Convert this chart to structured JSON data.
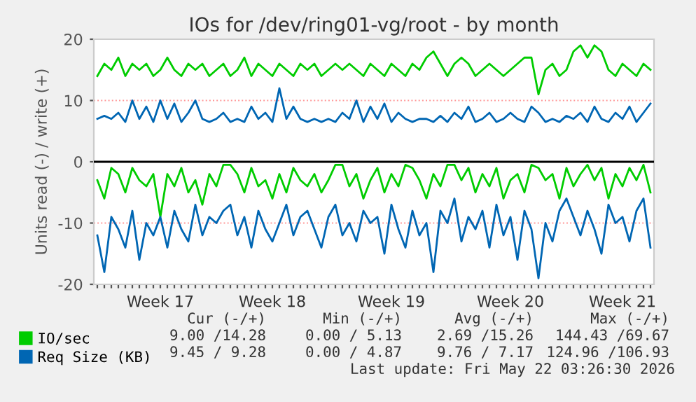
{
  "chart_data": {
    "type": "line",
    "title": "IOs for /dev/ring01-vg/root - by month",
    "ylabel": "Units read (-) / write (+)",
    "categories": [
      null,
      null,
      null,
      null,
      null,
      null,
      null,
      null,
      null,
      "Week 17",
      null,
      null,
      null,
      null,
      null,
      null,
      null,
      null,
      null,
      null,
      null,
      null,
      null,
      null,
      null,
      "Week 18",
      null,
      null,
      null,
      null,
      null,
      null,
      null,
      null,
      null,
      null,
      null,
      null,
      null,
      null,
      null,
      null,
      "Week 19",
      null,
      null,
      null,
      null,
      null,
      null,
      null,
      null,
      null,
      null,
      null,
      null,
      null,
      null,
      null,
      null,
      "Week 20",
      null,
      null,
      null,
      null,
      null,
      null,
      null,
      null,
      null,
      null,
      null,
      null,
      null,
      null,
      null,
      "Week 21",
      null,
      null,
      null,
      null
    ],
    "series": [
      {
        "name": "IO/sec",
        "color": "#00cc00",
        "values": [
          14,
          16,
          15,
          17,
          14,
          16,
          15,
          16,
          14,
          15,
          17,
          15,
          14,
          16,
          15,
          16,
          14,
          15,
          16,
          14,
          15,
          17,
          14,
          16,
          15,
          14,
          16,
          15,
          14,
          16,
          15,
          16,
          14,
          15,
          16,
          15,
          16,
          15,
          14,
          16,
          15,
          14,
          16,
          15,
          14,
          16,
          15,
          17,
          18,
          16,
          14,
          16,
          17,
          16,
          14,
          15,
          16,
          15,
          14,
          15,
          16,
          17,
          17,
          11,
          15,
          16,
          14,
          15,
          18,
          19,
          17,
          19,
          18,
          15,
          14,
          16,
          15,
          14,
          16,
          15
        ]
      },
      {
        "color": "#00cc00",
        "values": [
          -3,
          -6,
          -1,
          -2,
          -5,
          -1,
          -3,
          -4,
          -2,
          -9,
          -2,
          -4,
          -1,
          -5,
          -3,
          -7,
          -2,
          -4,
          -0.5,
          -0.5,
          -2,
          -5,
          -1,
          -4,
          -3,
          -6,
          -2,
          -5,
          -1,
          -3,
          -4,
          -2,
          -5,
          -3,
          -0.5,
          -0.5,
          -4,
          -2,
          -6,
          -3,
          -1,
          -5,
          -2,
          -4,
          -0.5,
          -1,
          -3,
          -6,
          -2,
          -4,
          -0.5,
          -0.5,
          -3,
          -1,
          -5,
          -2,
          -4,
          -1,
          -6,
          -3,
          -2,
          -5,
          -0.5,
          -1,
          -3,
          -2,
          -6,
          -1,
          -4,
          -2,
          -0.5,
          -3,
          -1,
          -6,
          -2,
          -4,
          -1,
          -3,
          -0.5,
          -5
        ]
      },
      {
        "name": "Req Size (KB)",
        "color": "#0066b3",
        "values": [
          7,
          7.5,
          7,
          8,
          6.5,
          10,
          7,
          9,
          6.5,
          10,
          7,
          9.5,
          6.5,
          8,
          10,
          7,
          6.5,
          7,
          8,
          6.5,
          7,
          6.5,
          9,
          7,
          8,
          6.5,
          12,
          7,
          9,
          7,
          6.5,
          7,
          6.5,
          7,
          6.5,
          8,
          7,
          10,
          6.5,
          9,
          7,
          9.5,
          6.5,
          8,
          7,
          6.5,
          7,
          7,
          6.5,
          7.5,
          6.5,
          8,
          7,
          9,
          6.5,
          7,
          8,
          6.5,
          7,
          8,
          7,
          6.5,
          9,
          8,
          6.5,
          7,
          6.5,
          7.5,
          7,
          8,
          6.5,
          9,
          7,
          6.5,
          8,
          7,
          9,
          6.5,
          8,
          9.5
        ]
      },
      {
        "color": "#0066b3",
        "values": [
          -12,
          -18,
          -9,
          -11,
          -14,
          -8,
          -16,
          -10,
          -12,
          -9,
          -14,
          -8,
          -11,
          -13,
          -7,
          -12,
          -9,
          -10,
          -8,
          -7,
          -12,
          -9,
          -14,
          -8,
          -11,
          -13,
          -10,
          -7,
          -12,
          -9,
          -8,
          -11,
          -14,
          -9,
          -7,
          -12,
          -10,
          -13,
          -8,
          -10,
          -9,
          -15,
          -7,
          -11,
          -14,
          -8,
          -12,
          -10,
          -18,
          -8,
          -10,
          -6,
          -13,
          -9,
          -11,
          -8,
          -14,
          -7,
          -12,
          -9,
          -16,
          -8,
          -11,
          -19,
          -10,
          -13,
          -8,
          -6,
          -9,
          -12,
          -8,
          -11,
          -15,
          -7,
          -10,
          -9,
          -13,
          -8,
          -6,
          -14
        ]
      }
    ],
    "ylim": [
      -20,
      20
    ],
    "yticks": [
      -20,
      -10,
      0,
      10,
      20
    ],
    "ref_lines": [
      {
        "axis": "y",
        "value": 0,
        "color": "#000000"
      }
    ],
    "grid": "y",
    "legend": "bottom left",
    "marker": "none",
    "line_style": "solid",
    "annotations": [
      "Cur (-/+)",
      "Min (-/+)",
      "Avg (-/+)",
      "Max (-/+)",
      "9.00 /14.28",
      "0.00 / 5.13",
      "2.69 /15.26",
      "144.43 /69.67",
      "9.45 / 9.28",
      "0.00 / 4.87",
      "9.76 / 7.17",
      "124.96 /106.93",
      "Last update: Fri May 22 03:26:30 2026"
    ]
  }
}
